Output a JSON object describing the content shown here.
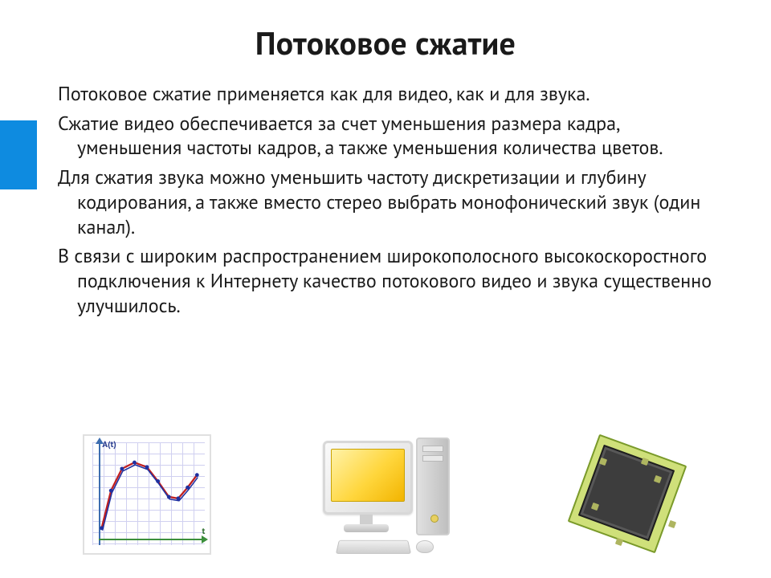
{
  "title": "Потоковое сжатие",
  "paragraphs": [
    "Потоковое сжатие применяется как для видео, как и для звука.",
    " Сжатие видео обеспечивается за счет уменьшения размера кадра, уменьшения частоты кадров, а также уменьшения количества цветов.",
    "Для сжатия звука можно уменьшить частоту дискретизации и глубину кодирования, а также вместо стерео выбрать монофонический звук (один канал).",
    "В связи с широким распространением широкополосного высокоскоростного подключения к Интернету качество потокового видео и звука существенно улучшилось."
  ],
  "accent_color": "#0e8be0",
  "chart": {
    "y_label": "A(t)",
    "x_label": "t",
    "curve_color_primary": "#c02020",
    "curve_color_secondary": "#2030a0",
    "points": [
      [
        22,
        118
      ],
      [
        34,
        70
      ],
      [
        48,
        42
      ],
      [
        64,
        34
      ],
      [
        80,
        40
      ],
      [
        94,
        58
      ],
      [
        108,
        78
      ],
      [
        120,
        80
      ],
      [
        132,
        66
      ],
      [
        144,
        50
      ]
    ]
  },
  "icons": {
    "chart": "signal-chart-icon",
    "computer": "desktop-computer-icon",
    "film": "film-clapper-icon"
  }
}
